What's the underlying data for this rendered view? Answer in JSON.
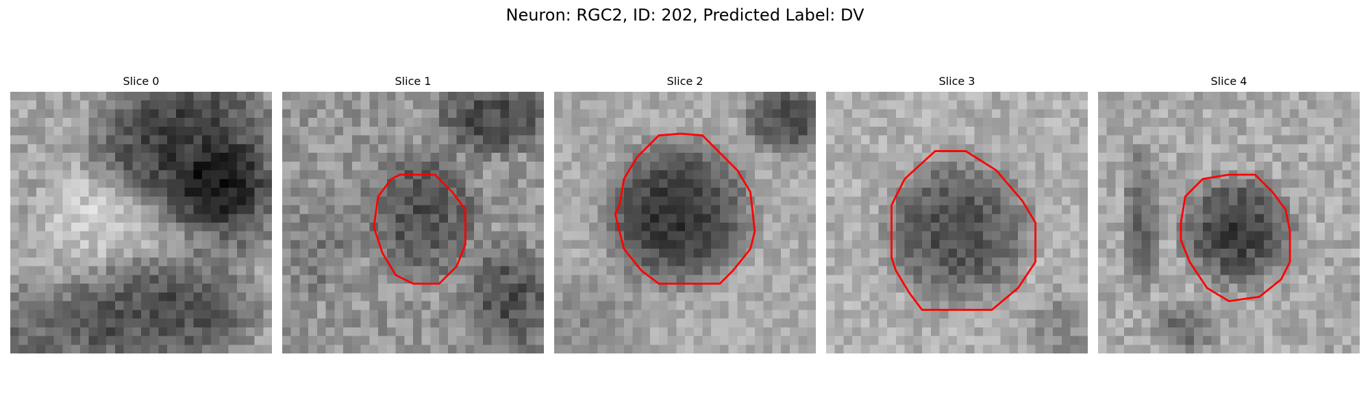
{
  "figure": {
    "title": "Neuron: RGC2, ID: 202, Predicted Label: DV"
  },
  "panels": [
    {
      "title": "Slice 0",
      "has_contour": false
    },
    {
      "title": "Slice 1",
      "has_contour": true
    },
    {
      "title": "Slice 2",
      "has_contour": true
    },
    {
      "title": "Slice 3",
      "has_contour": true
    },
    {
      "title": "Slice 4",
      "has_contour": true
    }
  ],
  "colors": {
    "contour": "#ff0000",
    "background": "#ffffff",
    "colormap": "grayscale"
  }
}
